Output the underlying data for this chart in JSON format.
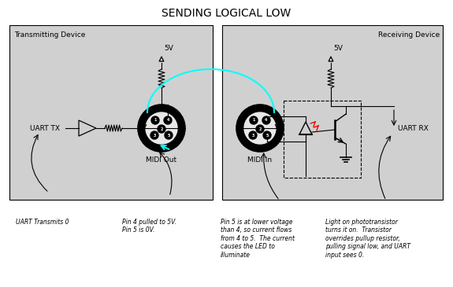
{
  "title": "SENDING LOGICAL LOW",
  "title_fontsize": 10,
  "title_font": "Courier New",
  "bg_color": "#d0d0d0",
  "white_bg": "#ffffff",
  "left_box_label": "Transmitting Device",
  "right_box_label": "Receiving Device",
  "uart_tx_label": "UART TX",
  "uart_rx_label": "UART RX",
  "midi_out_label": "MIDI Out",
  "midi_in_label": "MIDI In",
  "vcc_label": "5V",
  "annotation1": "UART Transmits 0",
  "annotation2": "Pin 4 pulled to 5V.\nPin 5 is 0V.",
  "annotation3": "Pin 5 is at lower voltage\nthan 4, so current flows\nfrom 4 to 5.  The current\ncauses the LED to\nilluminate",
  "annotation4": "Light on phototransistor\nturns it on.  Transistor\noverrides pullup resistor,\npulling signal low, and UART\ninput sees 0."
}
